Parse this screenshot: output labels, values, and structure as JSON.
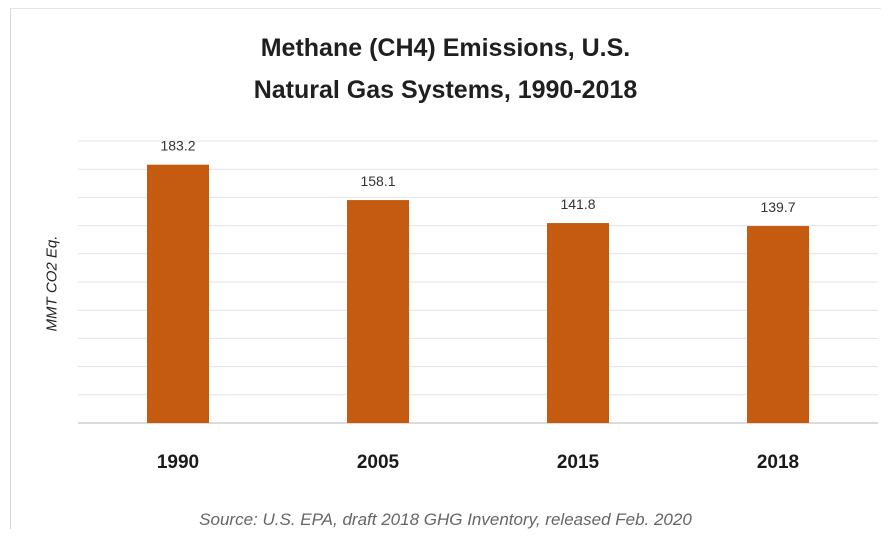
{
  "chart_data": {
    "type": "bar",
    "title": "Methane (CH4) Emissions, U.S.",
    "subtitle": "Natural Gas Systems, 1990-2018",
    "ylabel": "MMT CO2 Eq.",
    "xlabel": "",
    "categories": [
      "1990",
      "2005",
      "2015",
      "2018"
    ],
    "values": [
      183.2,
      158.1,
      141.8,
      139.7
    ],
    "value_labels": [
      "183.2",
      "158.1",
      "141.8",
      "139.7"
    ],
    "ylim": [
      0,
      200
    ],
    "grid": true,
    "legend": "none",
    "bar_color": "#c55a11",
    "source": "Source: U.S. EPA, draft 2018 GHG Inventory, released Feb. 2020"
  }
}
